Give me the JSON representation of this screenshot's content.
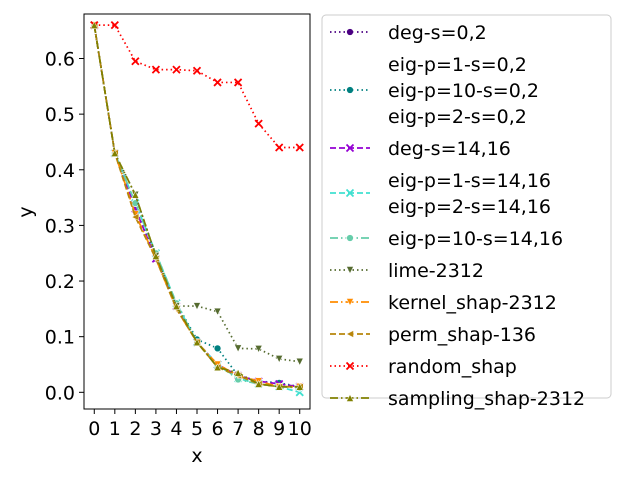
{
  "chart_data": {
    "type": "line",
    "xlabel": "x",
    "ylabel": "y",
    "xlim": [
      -0.5,
      10.5
    ],
    "ylim": [
      -0.03,
      0.68
    ],
    "x_ticks": [
      "0",
      "1",
      "2",
      "3",
      "4",
      "5",
      "6",
      "7",
      "8",
      "9",
      "10"
    ],
    "y_ticks": [
      "0.0",
      "0.1",
      "0.2",
      "0.3",
      "0.4",
      "0.5",
      "0.6"
    ],
    "y_tick_values": [
      0.0,
      0.1,
      0.2,
      0.3,
      0.4,
      0.5,
      0.6
    ],
    "x": [
      0,
      1,
      2,
      3,
      4,
      5,
      6,
      7,
      8,
      9,
      10
    ],
    "legend_position": "outside-right",
    "series": [
      {
        "name": "deg-s=0,2",
        "color": "#4b0082",
        "dash": "dot",
        "marker": "circle",
        "values": [
          0.66,
          0.43,
          0.33,
          0.24,
          0.155,
          0.09,
          0.05,
          0.03,
          0.02,
          0.015,
          0.01
        ]
      },
      {
        "name": "eig-p=1-s=0,2\neig-p=10-s=0,2\neig-p=2-s=0,2",
        "color": "#008080",
        "dash": "dot",
        "marker": "circle",
        "values": [
          0.66,
          0.43,
          0.33,
          0.245,
          0.16,
          0.095,
          0.079,
          0.03,
          0.02,
          0.017,
          0.01
        ]
      },
      {
        "name": "deg-s=14,16",
        "color": "#9400d3",
        "dash": "dash",
        "marker": "x",
        "values": [
          0.66,
          0.43,
          0.33,
          0.24,
          0.155,
          0.09,
          0.05,
          0.03,
          0.02,
          0.015,
          0.01
        ]
      },
      {
        "name": "eig-p=1-s=14,16\neig-p=2-s=14,16",
        "color": "#40e0d0",
        "dash": "dash",
        "marker": "x",
        "values": [
          0.66,
          0.43,
          0.34,
          0.25,
          0.16,
          0.09,
          0.05,
          0.025,
          0.015,
          0.01,
          0.0
        ]
      },
      {
        "name": "eig-p=10-s=14,16",
        "color": "#66cdaa",
        "dash": "dashdot",
        "marker": "circle",
        "values": [
          0.66,
          0.43,
          0.34,
          0.25,
          0.16,
          0.09,
          0.05,
          0.023,
          0.015,
          0.01,
          0.008
        ]
      },
      {
        "name": "lime-2312",
        "color": "#556b2f",
        "dash": "dot",
        "marker": "tri-down",
        "values": [
          0.66,
          0.43,
          0.355,
          0.245,
          0.155,
          0.155,
          0.145,
          0.079,
          0.078,
          0.06,
          0.055
        ]
      },
      {
        "name": "kernel_shap-2312",
        "color": "#ff8c00",
        "dash": "dashdot",
        "marker": "tri-down",
        "values": [
          0.66,
          0.43,
          0.32,
          0.24,
          0.15,
          0.09,
          0.05,
          0.03,
          0.02,
          0.01,
          0.01
        ]
      },
      {
        "name": "perm_shap-136",
        "color": "#b8860b",
        "dash": "dash",
        "marker": "tri-left",
        "values": [
          0.66,
          0.43,
          0.315,
          0.24,
          0.15,
          0.09,
          0.045,
          0.03,
          0.015,
          0.01,
          0.01
        ]
      },
      {
        "name": "random_shap",
        "color": "#ff0000",
        "dash": "dot",
        "marker": "x",
        "values": [
          0.66,
          0.66,
          0.595,
          0.58,
          0.58,
          0.578,
          0.557,
          0.557,
          0.483,
          0.44,
          0.44
        ]
      },
      {
        "name": "sampling_shap-2312",
        "color": "#808000",
        "dash": "dashdot",
        "marker": "tri-up",
        "values": [
          0.66,
          0.43,
          0.355,
          0.245,
          0.155,
          0.09,
          0.045,
          0.035,
          0.015,
          0.01,
          0.01
        ]
      }
    ]
  }
}
